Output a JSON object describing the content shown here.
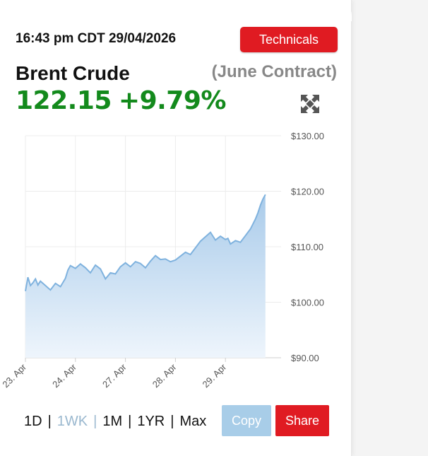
{
  "header": {
    "timestamp": "16:43 pm CDT 29/04/2026",
    "technicals_label": "Technicals"
  },
  "instrument": {
    "name": "Brent Crude",
    "contract": "(June Contract)",
    "price": "122.15",
    "change": "+9.79%"
  },
  "icons": {
    "expand": "expand-arrows-icon"
  },
  "colors": {
    "accent_red": "#e01b22",
    "price_green": "#138a1c",
    "line_blue": "#7fb2de",
    "fill_blue_top": "#a9cbea",
    "fill_blue_bottom": "#eaf3fb",
    "copy_blue": "#a8cde8"
  },
  "chart_data": {
    "type": "area",
    "x_ticks": [
      "23. Apr",
      "24. Apr",
      "27. Apr",
      "28. Apr",
      "29. Apr"
    ],
    "y_ticks": [
      "$130.00",
      "$120.00",
      "$110.00",
      "$100.00",
      "$90.00"
    ],
    "ylim": [
      90,
      130
    ],
    "xlim": [
      0,
      5
    ],
    "grid": true,
    "x": [
      0,
      0.05,
      0.1,
      0.15,
      0.2,
      0.25,
      0.3,
      0.4,
      0.5,
      0.6,
      0.7,
      0.8,
      0.85,
      0.9,
      1.0,
      1.1,
      1.2,
      1.3,
      1.4,
      1.5,
      1.6,
      1.7,
      1.8,
      1.9,
      2.0,
      2.1,
      2.2,
      2.3,
      2.4,
      2.5,
      2.6,
      2.7,
      2.8,
      2.9,
      3.0,
      3.1,
      3.2,
      3.3,
      3.4,
      3.5,
      3.6,
      3.7,
      3.8,
      3.9,
      4.0,
      4.05,
      4.1,
      4.2,
      4.3,
      4.4,
      4.5,
      4.6,
      4.65,
      4.7,
      4.75,
      4.8
    ],
    "values": [
      102.0,
      104.5,
      103.0,
      103.5,
      104.2,
      103.1,
      103.8,
      103.0,
      102.2,
      103.4,
      102.8,
      104.3,
      105.8,
      106.6,
      106.1,
      106.9,
      106.2,
      105.3,
      106.7,
      106.0,
      104.2,
      105.3,
      105.1,
      106.4,
      107.1,
      106.4,
      107.3,
      107.0,
      106.2,
      107.4,
      108.4,
      107.7,
      107.8,
      107.3,
      107.6,
      108.3,
      109.0,
      108.6,
      109.8,
      111.0,
      111.8,
      112.6,
      111.2,
      111.9,
      111.3,
      111.5,
      110.5,
      111.1,
      110.8,
      112.0,
      113.2,
      115.0,
      116.1,
      117.5,
      118.6,
      119.4
    ]
  },
  "periods": [
    {
      "label": "1D",
      "active": false
    },
    {
      "label": "1WK",
      "active": true
    },
    {
      "label": "1M",
      "active": false
    },
    {
      "label": "1YR",
      "active": false
    },
    {
      "label": "Max",
      "active": false
    }
  ],
  "actions": {
    "copy_label": "Copy",
    "share_label": "Share"
  }
}
